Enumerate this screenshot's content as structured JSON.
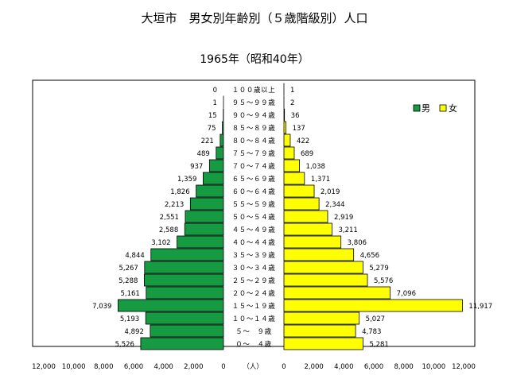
{
  "chart_data": {
    "type": "bar",
    "title": "大垣市　男女別年齢別（５歳階級別）人口",
    "subtitle": "1965年（昭和40年）",
    "unit_label": "（人）",
    "categories": [
      "１００歳以上",
      "９５～９９歳",
      "９０～９４歳",
      "８５～８９歳",
      "８０～８４歳",
      "７５～７９歳",
      "７０～７４歳",
      "６５～６９歳",
      "６０～６４歳",
      "５５～５９歳",
      "５０～５４歳",
      "４５～４９歳",
      "４０～４４歳",
      "３５～３９歳",
      "３０～３４歳",
      "２５～２９歳",
      "２０～２４歳",
      "１５～１９歳",
      "１０～１４歳",
      "５～　９歳",
      "０～　４歳"
    ],
    "series": [
      {
        "name": "男",
        "color": "#169b43",
        "values": [
          0,
          1,
          15,
          75,
          221,
          489,
          937,
          1359,
          1826,
          2213,
          2551,
          2588,
          3102,
          4844,
          5267,
          5288,
          5161,
          7039,
          5193,
          4892,
          5526
        ],
        "labels": [
          "0",
          "1",
          "15",
          "75",
          "221",
          "489",
          "937",
          "1,359",
          "1,826",
          "2,213",
          "2,551",
          "2,588",
          "3,102",
          "4,844",
          "5,267",
          "5,288",
          "5,161",
          "7,039",
          "5,193",
          "4,892",
          "5,526"
        ]
      },
      {
        "name": "女",
        "color": "#ffff00",
        "values": [
          1,
          2,
          36,
          137,
          422,
          689,
          1038,
          1371,
          2019,
          2344,
          2919,
          3211,
          3806,
          4656,
          5279,
          5576,
          7096,
          11917,
          5027,
          4783,
          5281
        ],
        "labels": [
          "1",
          "2",
          "36",
          "137",
          "422",
          "689",
          "1,038",
          "1,371",
          "2,019",
          "2,344",
          "2,919",
          "3,211",
          "3,806",
          "4,656",
          "5,279",
          "5,576",
          "7,096",
          "11,917",
          "5,027",
          "4,783",
          "5,281"
        ]
      }
    ],
    "male_axis_ticks": [
      "12,000",
      "10,000",
      "8,000",
      "6,000",
      "4,000",
      "2,000",
      "0"
    ],
    "female_axis_ticks": [
      "0",
      "2,000",
      "4,000",
      "6,000",
      "8,000",
      "10,000",
      "12,000"
    ],
    "xlim": [
      0,
      12000
    ],
    "legend": {
      "position": "top-right",
      "male": "男",
      "female": "女"
    },
    "grid": false
  }
}
